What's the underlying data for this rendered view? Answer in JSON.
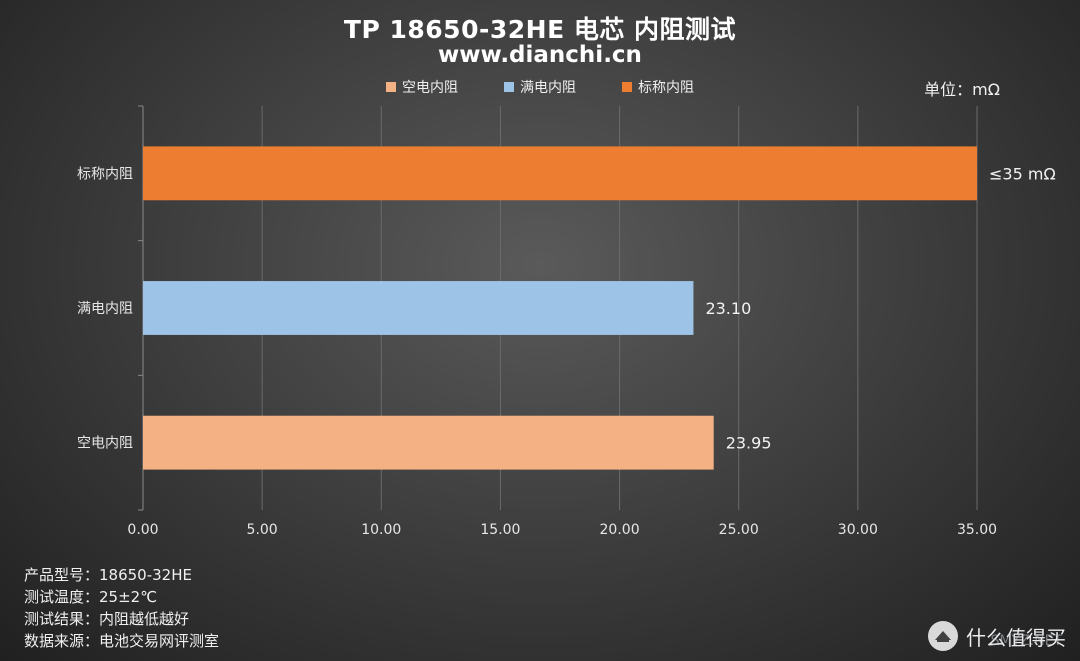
{
  "header": {
    "title": "TP 18650-32HE 电芯 内阻测试",
    "subtitle": "www.dianchi.cn",
    "unit": "单位：mΩ"
  },
  "legend": [
    {
      "label": "空电内阻",
      "color": "#F4B183"
    },
    {
      "label": "满电内阻",
      "color": "#9DC3E6"
    },
    {
      "label": "标称内阻",
      "color": "#ED7D31"
    }
  ],
  "chart_data": {
    "type": "bar",
    "orientation": "horizontal",
    "categories": [
      "标称内阻",
      "满电内阻",
      "空电内阻"
    ],
    "values": [
      35,
      23.1,
      23.95
    ],
    "data_labels": [
      "≤35 mΩ",
      "23.10",
      "23.95"
    ],
    "colors": [
      "#ED7D31",
      "#9DC3E6",
      "#F4B183"
    ],
    "xlim": [
      0,
      35
    ],
    "x_ticks": [
      0,
      5,
      10,
      15,
      20,
      25,
      30,
      35
    ],
    "x_tick_labels": [
      "0.00",
      "5.00",
      "10.00",
      "15.00",
      "20.00",
      "25.00",
      "30.00",
      "35.00"
    ],
    "grid": true,
    "legend_position": "top"
  },
  "notes": [
    "产品型号：18650-32HE",
    "测试温度：25±2℃",
    "测试结果：内阻越低越好",
    "数据来源：电池交易网评测室"
  ],
  "watermark": {
    "text": "什么值得买",
    "overlay": "SMYZ.NET"
  }
}
